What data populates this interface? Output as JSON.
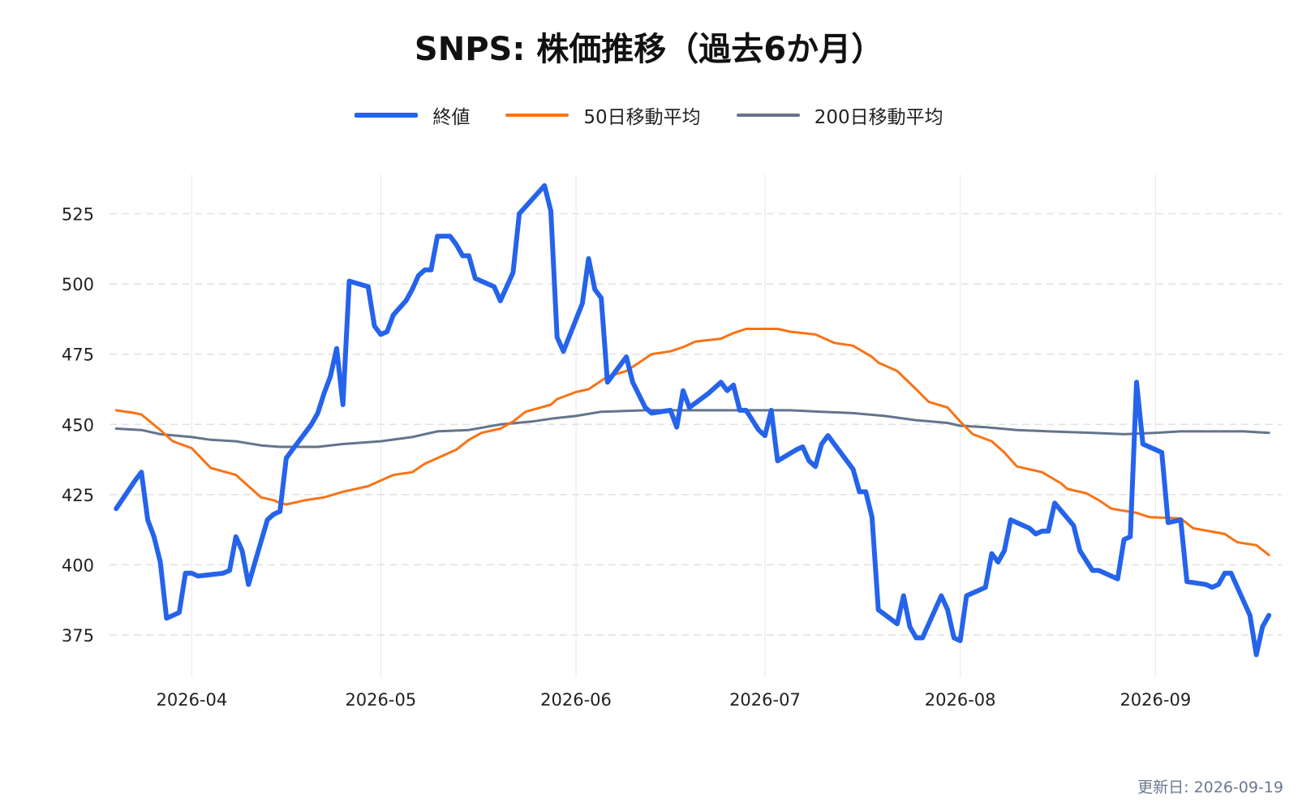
{
  "chart_data": {
    "type": "line",
    "title": "SNPS: 株価推移（過去6か月）",
    "xlabel": "",
    "ylabel": "",
    "x_ticks": [
      "2026-04",
      "2026-05",
      "2026-06",
      "2026-07",
      "2026-08",
      "2026-09"
    ],
    "x_range": [
      "2026-03-20",
      "2026-09-19"
    ],
    "y_ticks": [
      375,
      400,
      425,
      450,
      475,
      500,
      525
    ],
    "ylim": [
      360,
      539
    ],
    "grid": true,
    "legend_position": "top-center",
    "series": [
      {
        "name": "終値",
        "color": "#2563eb",
        "points": [
          [
            "2026-03-20",
            420
          ],
          [
            "2026-03-23",
            430
          ],
          [
            "2026-03-24",
            433
          ],
          [
            "2026-03-25",
            416
          ],
          [
            "2026-03-26",
            410
          ],
          [
            "2026-03-27",
            401
          ],
          [
            "2026-03-28",
            381
          ],
          [
            "2026-03-30",
            383
          ],
          [
            "2026-03-31",
            397
          ],
          [
            "2026-04-01",
            397
          ],
          [
            "2026-04-02",
            396
          ],
          [
            "2026-04-06",
            397
          ],
          [
            "2026-04-07",
            398
          ],
          [
            "2026-04-08",
            410
          ],
          [
            "2026-04-09",
            405
          ],
          [
            "2026-04-10",
            393
          ],
          [
            "2026-04-13",
            416
          ],
          [
            "2026-04-14",
            418
          ],
          [
            "2026-04-15",
            419
          ],
          [
            "2026-04-16",
            438
          ],
          [
            "2026-04-17",
            441
          ],
          [
            "2026-04-20",
            450
          ],
          [
            "2026-04-21",
            454
          ],
          [
            "2026-04-22",
            461
          ],
          [
            "2026-04-23",
            467
          ],
          [
            "2026-04-24",
            477
          ],
          [
            "2026-04-25",
            457
          ],
          [
            "2026-04-26",
            501
          ],
          [
            "2026-04-29",
            499
          ],
          [
            "2026-04-30",
            485
          ],
          [
            "2026-05-01",
            482
          ],
          [
            "2026-05-02",
            483
          ],
          [
            "2026-05-03",
            489
          ],
          [
            "2026-05-05",
            494
          ],
          [
            "2026-05-06",
            498
          ],
          [
            "2026-05-07",
            503
          ],
          [
            "2026-05-08",
            505
          ],
          [
            "2026-05-09",
            505
          ],
          [
            "2026-05-10",
            517
          ],
          [
            "2026-05-12",
            517
          ],
          [
            "2026-05-13",
            514
          ],
          [
            "2026-05-14",
            510
          ],
          [
            "2026-05-15",
            510
          ],
          [
            "2026-05-16",
            502
          ],
          [
            "2026-05-19",
            499
          ],
          [
            "2026-05-20",
            494
          ],
          [
            "2026-05-22",
            504
          ],
          [
            "2026-05-23",
            525
          ],
          [
            "2026-05-27",
            535
          ],
          [
            "2026-05-28",
            526
          ],
          [
            "2026-05-29",
            481
          ],
          [
            "2026-05-30",
            476
          ],
          [
            "2026-06-02",
            493
          ],
          [
            "2026-06-03",
            509
          ],
          [
            "2026-06-04",
            498
          ],
          [
            "2026-06-05",
            495
          ],
          [
            "2026-06-06",
            465
          ],
          [
            "2026-06-09",
            474
          ],
          [
            "2026-06-10",
            465
          ],
          [
            "2026-06-12",
            456
          ],
          [
            "2026-06-13",
            454
          ],
          [
            "2026-06-16",
            455
          ],
          [
            "2026-06-17",
            449
          ],
          [
            "2026-06-18",
            462
          ],
          [
            "2026-06-19",
            456
          ],
          [
            "2026-06-22",
            461
          ],
          [
            "2026-06-24",
            465
          ],
          [
            "2026-06-25",
            462
          ],
          [
            "2026-06-26",
            464
          ],
          [
            "2026-06-27",
            455
          ],
          [
            "2026-06-28",
            455
          ],
          [
            "2026-06-30",
            448
          ],
          [
            "2026-07-01",
            446
          ],
          [
            "2026-07-02",
            455
          ],
          [
            "2026-07-03",
            437
          ],
          [
            "2026-07-06",
            441
          ],
          [
            "2026-07-07",
            442
          ],
          [
            "2026-07-08",
            437
          ],
          [
            "2026-07-09",
            435
          ],
          [
            "2026-07-10",
            443
          ],
          [
            "2026-07-11",
            446
          ],
          [
            "2026-07-15",
            434
          ],
          [
            "2026-07-16",
            426
          ],
          [
            "2026-07-17",
            426
          ],
          [
            "2026-07-18",
            417
          ],
          [
            "2026-07-19",
            384
          ],
          [
            "2026-07-22",
            379
          ],
          [
            "2026-07-23",
            389
          ],
          [
            "2026-07-24",
            378
          ],
          [
            "2026-07-25",
            374
          ],
          [
            "2026-07-26",
            374
          ],
          [
            "2026-07-29",
            389
          ],
          [
            "2026-07-30",
            384
          ],
          [
            "2026-07-31",
            374
          ],
          [
            "2026-08-01",
            373
          ],
          [
            "2026-08-02",
            389
          ],
          [
            "2026-08-05",
            392
          ],
          [
            "2026-08-06",
            404
          ],
          [
            "2026-08-07",
            401
          ],
          [
            "2026-08-08",
            405
          ],
          [
            "2026-08-09",
            416
          ],
          [
            "2026-08-12",
            413
          ],
          [
            "2026-08-13",
            411
          ],
          [
            "2026-08-14",
            412
          ],
          [
            "2026-08-15",
            412
          ],
          [
            "2026-08-16",
            422
          ],
          [
            "2026-08-19",
            414
          ],
          [
            "2026-08-20",
            405
          ],
          [
            "2026-08-22",
            398
          ],
          [
            "2026-08-23",
            398
          ],
          [
            "2026-08-26",
            395
          ],
          [
            "2026-08-27",
            409
          ],
          [
            "2026-08-28",
            410
          ],
          [
            "2026-08-29",
            465
          ],
          [
            "2026-08-30",
            443
          ],
          [
            "2026-09-02",
            440
          ],
          [
            "2026-09-03",
            415
          ],
          [
            "2026-09-05",
            416
          ],
          [
            "2026-09-06",
            394
          ],
          [
            "2026-09-09",
            393
          ],
          [
            "2026-09-10",
            392
          ],
          [
            "2026-09-11",
            393
          ],
          [
            "2026-09-12",
            397
          ],
          [
            "2026-09-13",
            397
          ],
          [
            "2026-09-16",
            382
          ],
          [
            "2026-09-17",
            368
          ],
          [
            "2026-09-18",
            378
          ],
          [
            "2026-09-19",
            382
          ]
        ]
      },
      {
        "name": "50日移動平均",
        "color": "#f97316",
        "points": [
          [
            "2026-03-20",
            455
          ],
          [
            "2026-03-23",
            454
          ],
          [
            "2026-03-24",
            453.5
          ],
          [
            "2026-03-27",
            448
          ],
          [
            "2026-03-29",
            444
          ],
          [
            "2026-04-01",
            441.5
          ],
          [
            "2026-04-04",
            434.5
          ],
          [
            "2026-04-08",
            432
          ],
          [
            "2026-04-11",
            426
          ],
          [
            "2026-04-12",
            424
          ],
          [
            "2026-04-14",
            423
          ],
          [
            "2026-04-15",
            422
          ],
          [
            "2026-04-16",
            421.5
          ],
          [
            "2026-04-19",
            423
          ],
          [
            "2026-04-22",
            424
          ],
          [
            "2026-04-25",
            426
          ],
          [
            "2026-04-26",
            426.5
          ],
          [
            "2026-04-29",
            428
          ],
          [
            "2026-05-01",
            430
          ],
          [
            "2026-05-03",
            432
          ],
          [
            "2026-05-06",
            433
          ],
          [
            "2026-05-08",
            436
          ],
          [
            "2026-05-11",
            439
          ],
          [
            "2026-05-13",
            441
          ],
          [
            "2026-05-15",
            444.5
          ],
          [
            "2026-05-17",
            447
          ],
          [
            "2026-05-20",
            448.5
          ],
          [
            "2026-05-22",
            451
          ],
          [
            "2026-05-24",
            454.5
          ],
          [
            "2026-05-28",
            457
          ],
          [
            "2026-05-29",
            459
          ],
          [
            "2026-06-01",
            461.5
          ],
          [
            "2026-06-03",
            462.5
          ],
          [
            "2026-06-04",
            464
          ],
          [
            "2026-06-06",
            467
          ],
          [
            "2026-06-09",
            469
          ],
          [
            "2026-06-11",
            472
          ],
          [
            "2026-06-13",
            475
          ],
          [
            "2026-06-16",
            476
          ],
          [
            "2026-06-18",
            477.5
          ],
          [
            "2026-06-20",
            479.5
          ],
          [
            "2026-06-24",
            480.5
          ],
          [
            "2026-06-26",
            482.5
          ],
          [
            "2026-06-28",
            484
          ],
          [
            "2026-07-03",
            484
          ],
          [
            "2026-07-05",
            483
          ],
          [
            "2026-07-09",
            482
          ],
          [
            "2026-07-12",
            479
          ],
          [
            "2026-07-15",
            478
          ],
          [
            "2026-07-18",
            474
          ],
          [
            "2026-07-19",
            472
          ],
          [
            "2026-07-22",
            469
          ],
          [
            "2026-07-25",
            462.5
          ],
          [
            "2026-07-27",
            458
          ],
          [
            "2026-07-30",
            456
          ],
          [
            "2026-08-01",
            451
          ],
          [
            "2026-08-03",
            446.5
          ],
          [
            "2026-08-06",
            444
          ],
          [
            "2026-08-08",
            440
          ],
          [
            "2026-08-10",
            435
          ],
          [
            "2026-08-14",
            433
          ],
          [
            "2026-08-17",
            429
          ],
          [
            "2026-08-18",
            427
          ],
          [
            "2026-08-21",
            425.5
          ],
          [
            "2026-08-23",
            423
          ],
          [
            "2026-08-25",
            420
          ],
          [
            "2026-08-29",
            418.5
          ],
          [
            "2026-08-31",
            417
          ],
          [
            "2026-09-05",
            416.5
          ],
          [
            "2026-09-07",
            413
          ],
          [
            "2026-09-12",
            411
          ],
          [
            "2026-09-14",
            408
          ],
          [
            "2026-09-17",
            407
          ],
          [
            "2026-09-19",
            403.5
          ]
        ]
      },
      {
        "name": "200日移動平均",
        "color": "#64748b",
        "points": [
          [
            "2026-03-20",
            448.5
          ],
          [
            "2026-03-24",
            448
          ],
          [
            "2026-03-27",
            446.5
          ],
          [
            "2026-04-01",
            445.5
          ],
          [
            "2026-04-04",
            444.5
          ],
          [
            "2026-04-08",
            444
          ],
          [
            "2026-04-12",
            442.5
          ],
          [
            "2026-04-15",
            442
          ],
          [
            "2026-04-21",
            442
          ],
          [
            "2026-04-25",
            443
          ],
          [
            "2026-05-01",
            444
          ],
          [
            "2026-05-06",
            445.5
          ],
          [
            "2026-05-10",
            447.5
          ],
          [
            "2026-05-15",
            448
          ],
          [
            "2026-05-20",
            450
          ],
          [
            "2026-05-25",
            451
          ],
          [
            "2026-05-28",
            452
          ],
          [
            "2026-06-01",
            453
          ],
          [
            "2026-06-05",
            454.5
          ],
          [
            "2026-06-12",
            455
          ],
          [
            "2026-06-20",
            455
          ],
          [
            "2026-06-28",
            455
          ],
          [
            "2026-07-05",
            455
          ],
          [
            "2026-07-10",
            454.5
          ],
          [
            "2026-07-15",
            454
          ],
          [
            "2026-07-20",
            453
          ],
          [
            "2026-07-25",
            451.5
          ],
          [
            "2026-07-30",
            450.5
          ],
          [
            "2026-08-01",
            449.5
          ],
          [
            "2026-08-05",
            449
          ],
          [
            "2026-08-10",
            448
          ],
          [
            "2026-08-15",
            447.5
          ],
          [
            "2026-08-22",
            447
          ],
          [
            "2026-08-27",
            446.5
          ],
          [
            "2026-09-01",
            447
          ],
          [
            "2026-09-05",
            447.5
          ],
          [
            "2026-09-10",
            447.5
          ],
          [
            "2026-09-15",
            447.5
          ],
          [
            "2026-09-19",
            447
          ]
        ]
      }
    ]
  },
  "footer": {
    "updated": "更新日: 2026-09-19"
  }
}
